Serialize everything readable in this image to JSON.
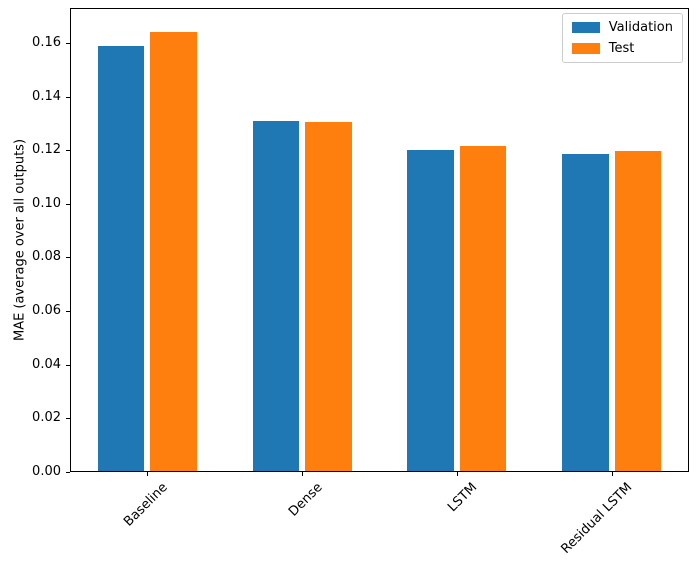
{
  "chart_data": {
    "type": "bar",
    "title": "",
    "xlabel": "",
    "ylabel": "MAE (average over all outputs)",
    "categories": [
      "Baseline",
      "Dense",
      "LSTM",
      "Residual LSTM"
    ],
    "series": [
      {
        "name": "Validation",
        "color": "#1f77b4",
        "values": [
          0.159,
          0.131,
          0.12,
          0.1185
        ]
      },
      {
        "name": "Test",
        "color": "#ff7f0e",
        "values": [
          0.164,
          0.1305,
          0.1215,
          0.1195
        ]
      }
    ],
    "ylim": [
      0,
      0.173
    ],
    "yticks": [
      0.0,
      0.02,
      0.04,
      0.06,
      0.08,
      0.1,
      0.12,
      0.14,
      0.16
    ],
    "ytick_labels": [
      "0.00",
      "0.02",
      "0.04",
      "0.06",
      "0.08",
      "0.10",
      "0.12",
      "0.14",
      "0.16"
    ],
    "xtick_rotation": 45,
    "bar_width": 0.3,
    "group_offset": 0.17,
    "grid": false,
    "legend_position": "upper right",
    "axis_color": "#000000"
  }
}
